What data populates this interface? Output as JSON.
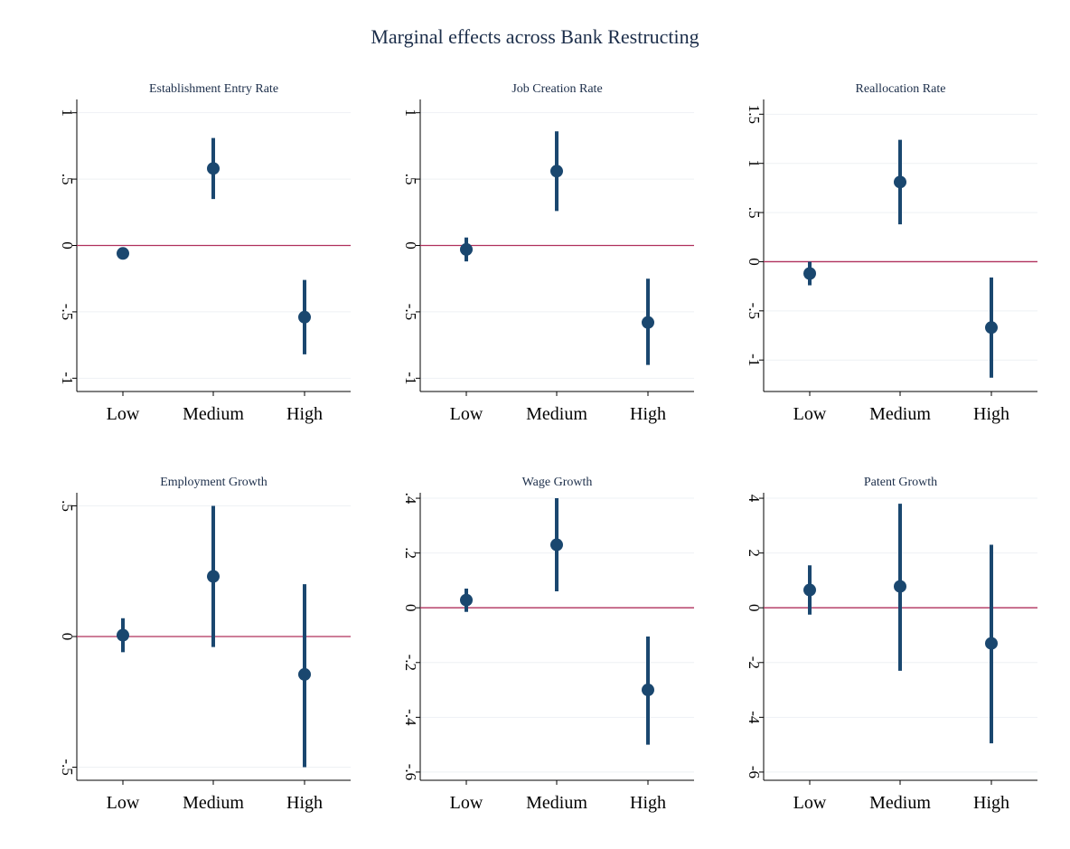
{
  "title": "Marginal effects across Bank Restructing",
  "colors": {
    "marker": "#1a476f",
    "reference_line": "#b0305c",
    "grid": "#eef1f4",
    "axis": "#000000",
    "title": "#1c2e4a"
  },
  "chart_data": [
    {
      "type": "scatter",
      "title": "Establishment Entry Rate",
      "categories": [
        "Low",
        "Medium",
        "High"
      ],
      "estimates": [
        -0.06,
        0.58,
        -0.54
      ],
      "ci_lower": [
        -0.09,
        0.35,
        -0.82
      ],
      "ci_upper": [
        -0.03,
        0.81,
        -0.26
      ],
      "ylim": [
        -1.1,
        1.1
      ],
      "yticks": [
        -1,
        -0.5,
        0,
        0.5,
        1
      ],
      "ytick_labels": [
        "-1",
        "-.5",
        "0",
        ".5",
        "1"
      ],
      "reference_line": 0
    },
    {
      "type": "scatter",
      "title": "Job Creation Rate",
      "categories": [
        "Low",
        "Medium",
        "High"
      ],
      "estimates": [
        -0.03,
        0.56,
        -0.58
      ],
      "ci_lower": [
        -0.12,
        0.26,
        -0.9
      ],
      "ci_upper": [
        0.06,
        0.86,
        -0.25
      ],
      "ylim": [
        -1.1,
        1.1
      ],
      "yticks": [
        -1,
        -0.5,
        0,
        0.5,
        1
      ],
      "ytick_labels": [
        "-1",
        "-.5",
        "0",
        ".5",
        "1"
      ],
      "reference_line": 0
    },
    {
      "type": "scatter",
      "title": "Reallocation Rate",
      "categories": [
        "Low",
        "Medium",
        "High"
      ],
      "estimates": [
        -0.12,
        0.81,
        -0.67
      ],
      "ci_lower": [
        -0.24,
        0.38,
        -1.18
      ],
      "ci_upper": [
        0.0,
        1.24,
        -0.16
      ],
      "ylim": [
        -1.32,
        1.65
      ],
      "yticks": [
        -1,
        -0.5,
        0,
        0.5,
        1,
        1.5
      ],
      "ytick_labels": [
        "-1",
        "-.5",
        "0",
        ".5",
        "1",
        "1.5"
      ],
      "reference_line": 0
    },
    {
      "type": "scatter",
      "title": "Employment Growth",
      "categories": [
        "Low",
        "Medium",
        "High"
      ],
      "estimates": [
        0.005,
        0.23,
        -0.145
      ],
      "ci_lower": [
        -0.06,
        -0.04,
        -0.5
      ],
      "ci_upper": [
        0.07,
        0.5,
        0.2
      ],
      "ylim": [
        -0.55,
        0.55
      ],
      "yticks": [
        -0.5,
        0,
        0.5
      ],
      "ytick_labels": [
        "-.5",
        "0",
        ".5"
      ],
      "reference_line": 0
    },
    {
      "type": "scatter",
      "title": "Wage Growth",
      "categories": [
        "Low",
        "Medium",
        "High"
      ],
      "estimates": [
        0.028,
        0.23,
        -0.3
      ],
      "ci_lower": [
        -0.015,
        0.06,
        -0.5
      ],
      "ci_upper": [
        0.07,
        0.4,
        -0.105
      ],
      "ylim": [
        -0.63,
        0.42
      ],
      "yticks": [
        -0.6,
        -0.4,
        -0.2,
        0,
        0.2,
        0.4
      ],
      "ytick_labels": [
        "-.6",
        "-.4",
        "-.2",
        "0",
        ".2",
        ".4"
      ],
      "reference_line": 0
    },
    {
      "type": "scatter",
      "title": "Patent Growth",
      "categories": [
        "Low",
        "Medium",
        "High"
      ],
      "estimates": [
        0.65,
        0.78,
        -1.3
      ],
      "ci_lower": [
        -0.25,
        -2.3,
        -4.95
      ],
      "ci_upper": [
        1.55,
        3.8,
        2.3
      ],
      "ylim": [
        -6.3,
        4.2
      ],
      "yticks": [
        -6,
        -4,
        -2,
        0,
        2,
        4
      ],
      "ytick_labels": [
        "-6",
        "-4",
        "-2",
        "0",
        "2",
        "4"
      ],
      "reference_line": 0
    }
  ]
}
